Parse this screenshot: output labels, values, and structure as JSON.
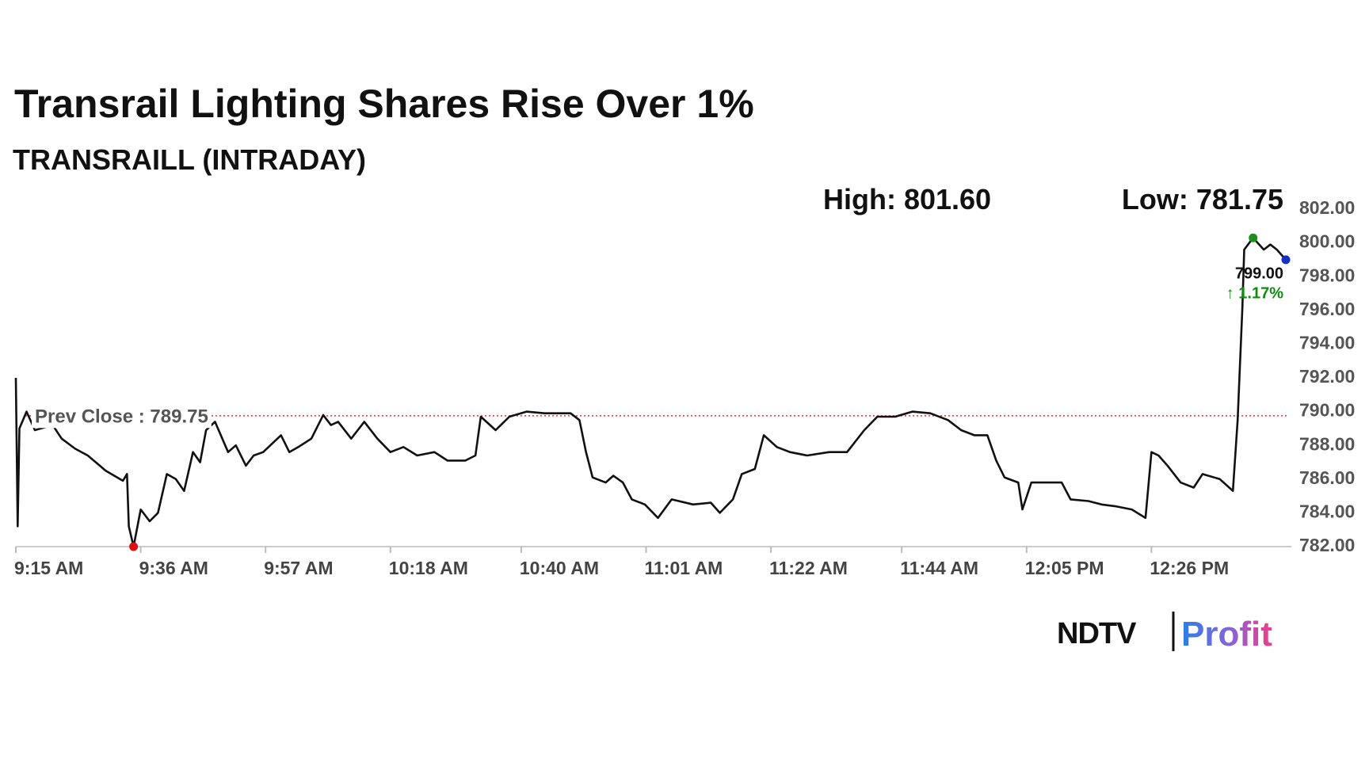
{
  "chart_data": {
    "type": "line",
    "title": "Transrail Lighting Shares Rise Over 1%",
    "subtitle": "TRANSRAILL (INTRADAY)",
    "high_label": "High: 801.60",
    "low_label": "Low: 781.75",
    "prev_close": {
      "value": 789.75,
      "label": "Prev Close : 789.75",
      "color": "#d43a3a"
    },
    "last_label": {
      "value": 799,
      "label": "799.00"
    },
    "change_label": "↑ 1.17%",
    "color": "#111111",
    "high_color": "#1e8c1e",
    "low_color": "#e01010",
    "last_color": "#1030c8",
    "grid": false,
    "xlim": [
      0,
      214
    ],
    "xticks": [
      {
        "value": 0,
        "label": "9:15 AM"
      },
      {
        "value": 21,
        "label": "9:36 AM"
      },
      {
        "value": 42,
        "label": "9:57 AM"
      },
      {
        "value": 63,
        "label": "10:18 AM"
      },
      {
        "value": 85,
        "label": "10:40 AM"
      },
      {
        "value": 106,
        "label": "11:01 AM"
      },
      {
        "value": 127,
        "label": "11:22 AM"
      },
      {
        "value": 149,
        "label": "11:44 AM"
      },
      {
        "value": 170,
        "label": "12:05 PM"
      },
      {
        "value": 191,
        "label": "12:26 PM"
      }
    ],
    "ylim": [
      782,
      802
    ],
    "yticks": [
      {
        "value": 782,
        "label": "782.00"
      },
      {
        "value": 784,
        "label": "784.00"
      },
      {
        "value": 786,
        "label": "786.00"
      },
      {
        "value": 788,
        "label": "788.00"
      },
      {
        "value": 790,
        "label": "790.00"
      },
      {
        "value": 792,
        "label": "792.00"
      },
      {
        "value": 794,
        "label": "794.00"
      },
      {
        "value": 796,
        "label": "796.00"
      },
      {
        "value": 798,
        "label": "798.00"
      },
      {
        "value": 800,
        "label": "800.00"
      },
      {
        "value": 802,
        "label": "802.00"
      }
    ],
    "x": [
      0,
      0.3,
      0.6,
      1.8,
      3.2,
      6.2,
      7.7,
      10,
      12.1,
      15.1,
      18,
      18.7,
      19,
      19.8,
      21,
      22.5,
      23.9,
      25.4,
      26.9,
      28.3,
      29.8,
      31,
      32,
      33.5,
      35.7,
      37,
      38.7,
      40,
      41.6,
      44.6,
      46,
      47.5,
      49.7,
      51.7,
      53,
      54.2,
      56.4,
      58.6,
      60.8,
      63,
      65.2,
      67.5,
      70.4,
      72.6,
      75.6,
      77.3,
      78.2,
      80.7,
      83,
      85.9,
      88.9,
      93.3,
      94.8,
      95.9,
      97,
      99.2,
      100.5,
      102.1,
      103.6,
      105.8,
      108,
      110.3,
      113.9,
      116.9,
      118.4,
      120.6,
      122.1,
      124.3,
      125.8,
      128,
      130.2,
      133.1,
      136.8,
      139.8,
      142.7,
      144.9,
      147.9,
      150.8,
      153.8,
      156.8,
      159,
      161.2,
      163.4,
      164.9,
      166.3,
      168.6,
      169.3,
      170.8,
      173,
      175.9,
      177.4,
      180.4,
      182.6,
      184.8,
      187.7,
      190,
      191,
      192.2,
      193.7,
      195.9,
      198.1,
      199.6,
      202.5,
      204.7,
      205.5,
      206.3,
      206.6,
      208.1,
      209.9,
      211,
      212.1,
      213.6
    ],
    "values": [
      792.0,
      783.2,
      789.0,
      790.0,
      788.9,
      789.2,
      788.4,
      787.8,
      787.4,
      786.5,
      785.9,
      786.3,
      783.2,
      782.0,
      784.2,
      783.5,
      784.0,
      786.3,
      786.0,
      785.3,
      787.6,
      787.0,
      788.9,
      789.4,
      787.6,
      788.0,
      786.8,
      787.4,
      787.6,
      788.6,
      787.6,
      787.9,
      788.4,
      789.8,
      789.2,
      789.4,
      788.4,
      789.4,
      788.4,
      787.6,
      787.9,
      787.4,
      787.6,
      787.1,
      787.1,
      787.4,
      789.7,
      788.9,
      789.7,
      790.0,
      789.9,
      789.9,
      789.5,
      787.6,
      786.1,
      785.8,
      786.2,
      785.8,
      784.8,
      784.5,
      783.7,
      784.8,
      784.5,
      784.6,
      784.0,
      784.8,
      786.3,
      786.6,
      788.6,
      787.9,
      787.6,
      787.4,
      787.6,
      787.6,
      788.9,
      789.7,
      789.7,
      790.0,
      789.9,
      789.5,
      788.9,
      788.6,
      788.6,
      787.1,
      786.1,
      785.8,
      784.2,
      785.8,
      785.8,
      785.8,
      784.8,
      784.7,
      784.5,
      784.4,
      784.2,
      783.7,
      787.6,
      787.4,
      786.8,
      785.8,
      785.5,
      786.3,
      786.0,
      785.3,
      789.5,
      796.2,
      799.6,
      800.3,
      799.6,
      799.9,
      799.6,
      799.0
    ]
  },
  "logo": {
    "brand": "NDTV",
    "product": "Profit"
  }
}
